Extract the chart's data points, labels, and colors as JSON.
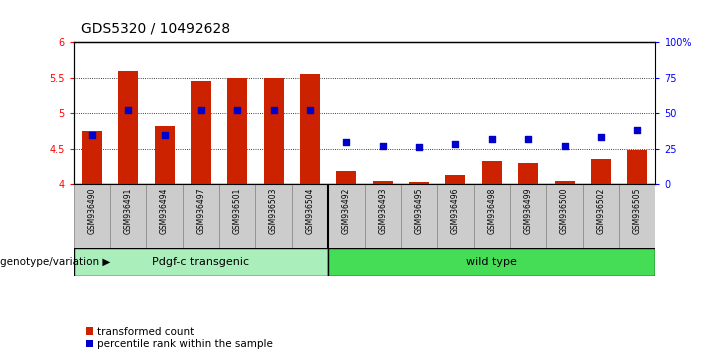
{
  "title": "GDS5320 / 10492628",
  "samples": [
    "GSM936490",
    "GSM936491",
    "GSM936494",
    "GSM936497",
    "GSM936501",
    "GSM936503",
    "GSM936504",
    "GSM936492",
    "GSM936493",
    "GSM936495",
    "GSM936496",
    "GSM936498",
    "GSM936499",
    "GSM936500",
    "GSM936502",
    "GSM936505"
  ],
  "red_values": [
    4.75,
    5.6,
    4.82,
    5.45,
    5.5,
    5.5,
    5.55,
    4.18,
    4.05,
    4.03,
    4.13,
    4.32,
    4.3,
    4.05,
    4.35,
    4.48
  ],
  "blue_values": [
    35,
    52,
    35,
    52,
    52,
    52,
    52,
    30,
    27,
    26,
    28,
    32,
    32,
    27,
    33,
    38
  ],
  "group1_label": "Pdgf-c transgenic",
  "group2_label": "wild type",
  "group1_count": 7,
  "group2_count": 9,
  "ylim_left": [
    4.0,
    6.0
  ],
  "ylim_right": [
    0,
    100
  ],
  "yticks_left": [
    4.0,
    4.5,
    5.0,
    5.5,
    6.0
  ],
  "yticks_right": [
    0,
    25,
    50,
    75,
    100
  ],
  "ytick_labels_right": [
    "0",
    "25",
    "50",
    "75",
    "100%"
  ],
  "bar_color": "#cc2200",
  "dot_color": "#0000cc",
  "bg_color": "#ffffff",
  "xlabel_area_color": "#cccccc",
  "group1_bg": "#aaeebb",
  "group2_bg": "#44dd55",
  "legend_items": [
    "transformed count",
    "percentile rank within the sample"
  ],
  "genotype_label": "genotype/variation",
  "title_fontsize": 10,
  "tick_fontsize": 7,
  "label_fontsize": 7.5,
  "dotted_lines": [
    4.5,
    5.0,
    5.5
  ]
}
